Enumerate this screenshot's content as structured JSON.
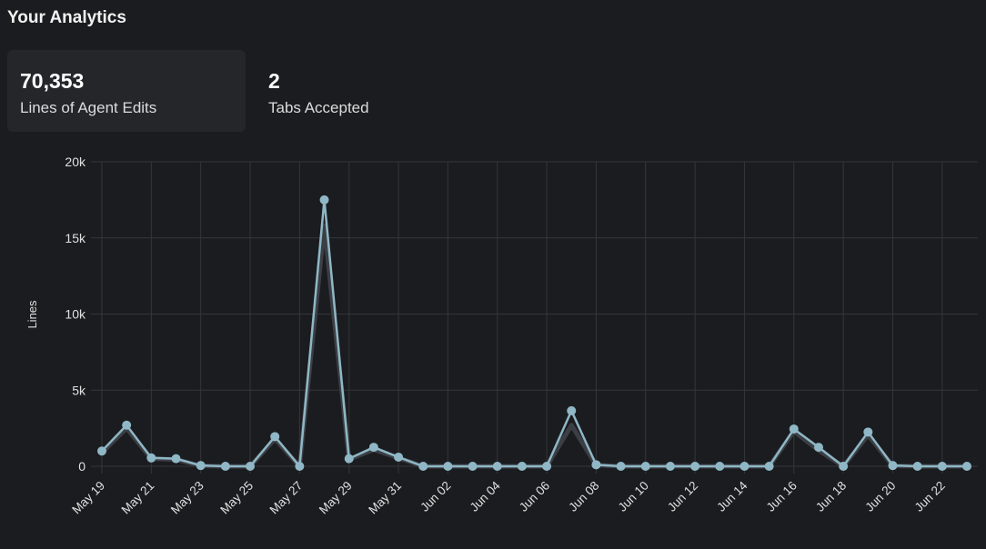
{
  "page": {
    "title": "Your Analytics"
  },
  "stats": [
    {
      "value": "70,353",
      "label": "Lines of Agent Edits"
    },
    {
      "value": "2",
      "label": "Tabs Accepted"
    }
  ],
  "colors": {
    "line": "#8fb7c6",
    "shadow": "#3b3f45",
    "grid": "#34363a",
    "background": "#1b1c1f"
  },
  "chart_data": {
    "type": "line",
    "ylabel": "Lines",
    "xlabel": "",
    "ylim": [
      0,
      20000
    ],
    "yticks": [
      0,
      5000,
      10000,
      15000,
      20000
    ],
    "ytick_labels": [
      "0",
      "5k",
      "10k",
      "15k",
      "20k"
    ],
    "x_tick_labels": [
      "May 19",
      "May 21",
      "May 23",
      "May 25",
      "May 27",
      "May 29",
      "May 31",
      "Jun 02",
      "Jun 04",
      "Jun 06",
      "Jun 08",
      "Jun 10",
      "Jun 12",
      "Jun 14",
      "Jun 16",
      "Jun 18",
      "Jun 20",
      "Jun 22"
    ],
    "grid": true,
    "x": [
      "May 19",
      "May 20",
      "May 21",
      "May 22",
      "May 23",
      "May 24",
      "May 25",
      "May 26",
      "May 27",
      "May 28",
      "May 29",
      "May 30",
      "May 31",
      "Jun 01",
      "Jun 02",
      "Jun 03",
      "Jun 04",
      "Jun 05",
      "Jun 06",
      "Jun 07",
      "Jun 08",
      "Jun 09",
      "Jun 10",
      "Jun 11",
      "Jun 12",
      "Jun 13",
      "Jun 14",
      "Jun 15",
      "Jun 16",
      "Jun 17",
      "Jun 18",
      "Jun 19",
      "Jun 20",
      "Jun 21",
      "Jun 22",
      "Jun 23"
    ],
    "series": [
      {
        "values": [
          1000,
          2700,
          550,
          500,
          50,
          0,
          0,
          1950,
          0,
          17500,
          500,
          1250,
          600,
          0,
          0,
          0,
          0,
          0,
          0,
          3650,
          100,
          0,
          0,
          0,
          0,
          0,
          0,
          0,
          2450,
          1250,
          0,
          2250,
          50,
          0,
          0,
          0
        ]
      }
    ],
    "secondary_values": [
      900,
      2500,
      500,
      450,
      30,
      0,
      0,
      1800,
      0,
      15800,
      450,
      1100,
      550,
      0,
      0,
      0,
      0,
      0,
      0,
      2700,
      80,
      0,
      0,
      0,
      0,
      0,
      0,
      0,
      2300,
      1050,
      0,
      2050,
      30,
      0,
      0,
      0
    ]
  }
}
